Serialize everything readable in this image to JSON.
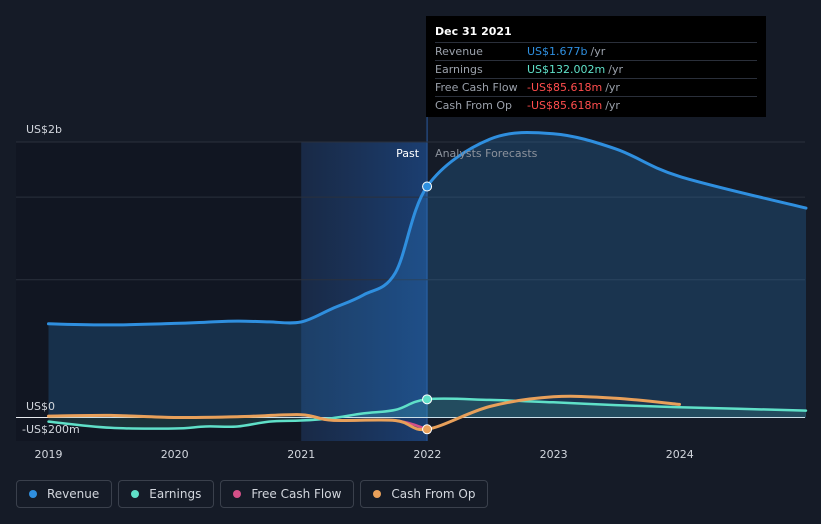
{
  "chart_data": {
    "type": "line",
    "x_ticks": [
      "2019",
      "2020",
      "2021",
      "2022",
      "2023",
      "2024"
    ],
    "y_tick_labels": [
      "US$2b",
      "US$0",
      "-US$200m"
    ],
    "region_labels": {
      "past": "Past",
      "forecast": "Analysts Forecasts"
    },
    "xlim": [
      "2019-01-01",
      "2024-12-31"
    ],
    "ylim": [
      -200,
      2000
    ],
    "y_unit": "US$m",
    "divider_date": "2021-12-31",
    "highlight_start": "2021-01-01",
    "colors": {
      "revenue": "#2f8fdf",
      "earnings": "#5fe0c8",
      "free_cash_flow": "#d45088",
      "cash_from_op": "#e8a05a",
      "background": "#151b27"
    },
    "series": [
      {
        "name": "Revenue",
        "key": "revenue",
        "x": [
          "2019-01-01",
          "2019-06-30",
          "2019-12-31",
          "2020-03-31",
          "2020-06-30",
          "2020-09-30",
          "2020-12-31",
          "2021-03-31",
          "2021-06-30",
          "2021-09-30",
          "2021-12-31",
          "2022-06-30",
          "2022-12-31",
          "2023-06-30",
          "2023-12-31",
          "2024-12-31"
        ],
        "values": [
          680,
          672,
          683,
          692,
          700,
          694,
          693,
          790,
          890,
          1050,
          1677,
          2020,
          2060,
          1950,
          1750,
          1520
        ]
      },
      {
        "name": "Earnings",
        "key": "earnings",
        "x": [
          "2019-01-01",
          "2019-06-30",
          "2019-12-31",
          "2020-03-31",
          "2020-06-30",
          "2020-09-30",
          "2020-12-31",
          "2021-03-31",
          "2021-06-30",
          "2021-09-30",
          "2021-12-31",
          "2022-06-30",
          "2022-12-31",
          "2023-06-30",
          "2023-12-31",
          "2024-12-31"
        ],
        "values": [
          -30,
          -75,
          -80,
          -65,
          -65,
          -30,
          -22,
          -5,
          30,
          55,
          132,
          128,
          110,
          90,
          75,
          50
        ]
      },
      {
        "name": "Free Cash Flow",
        "key": "free_cash_flow",
        "x": [
          "2019-01-01",
          "2019-06-30",
          "2019-12-31",
          "2020-06-30",
          "2020-12-31",
          "2021-03-31",
          "2021-09-30",
          "2021-12-31"
        ],
        "values": [
          10,
          15,
          0,
          5,
          20,
          -20,
          -22,
          -85.618
        ]
      },
      {
        "name": "Cash From Op",
        "key": "cash_from_op",
        "x": [
          "2019-01-01",
          "2019-06-30",
          "2019-12-31",
          "2020-06-30",
          "2020-12-31",
          "2021-03-31",
          "2021-09-30",
          "2021-12-31",
          "2022-06-30",
          "2022-12-31",
          "2023-06-30",
          "2023-12-31"
        ],
        "values": [
          10,
          15,
          0,
          5,
          20,
          -20,
          -22,
          -85.618,
          80,
          150,
          140,
          95
        ]
      }
    ],
    "markers": [
      {
        "series": "revenue",
        "x": "2021-12-31",
        "value": 1677
      },
      {
        "series": "earnings",
        "x": "2021-12-31",
        "value": 132.002
      },
      {
        "series": "cash_from_op",
        "x": "2021-12-31",
        "value": -85.618
      }
    ]
  },
  "tooltip": {
    "date": "Dec 31 2021",
    "rows": [
      {
        "label": "Revenue",
        "value": "US$1.677b",
        "unit": "/yr",
        "color": "#2f8fdf"
      },
      {
        "label": "Earnings",
        "value": "US$132.002m",
        "unit": "/yr",
        "color": "#5fe0c8"
      },
      {
        "label": "Free Cash Flow",
        "value": "-US$85.618m",
        "unit": "/yr",
        "color": "#ff4d4d"
      },
      {
        "label": "Cash From Op",
        "value": "-US$85.618m",
        "unit": "/yr",
        "color": "#ff4d4d"
      }
    ]
  },
  "legend": [
    {
      "label": "Revenue",
      "color": "#2f8fdf"
    },
    {
      "label": "Earnings",
      "color": "#5fe0c8"
    },
    {
      "label": "Free Cash Flow",
      "color": "#d45088"
    },
    {
      "label": "Cash From Op",
      "color": "#e8a05a"
    }
  ]
}
